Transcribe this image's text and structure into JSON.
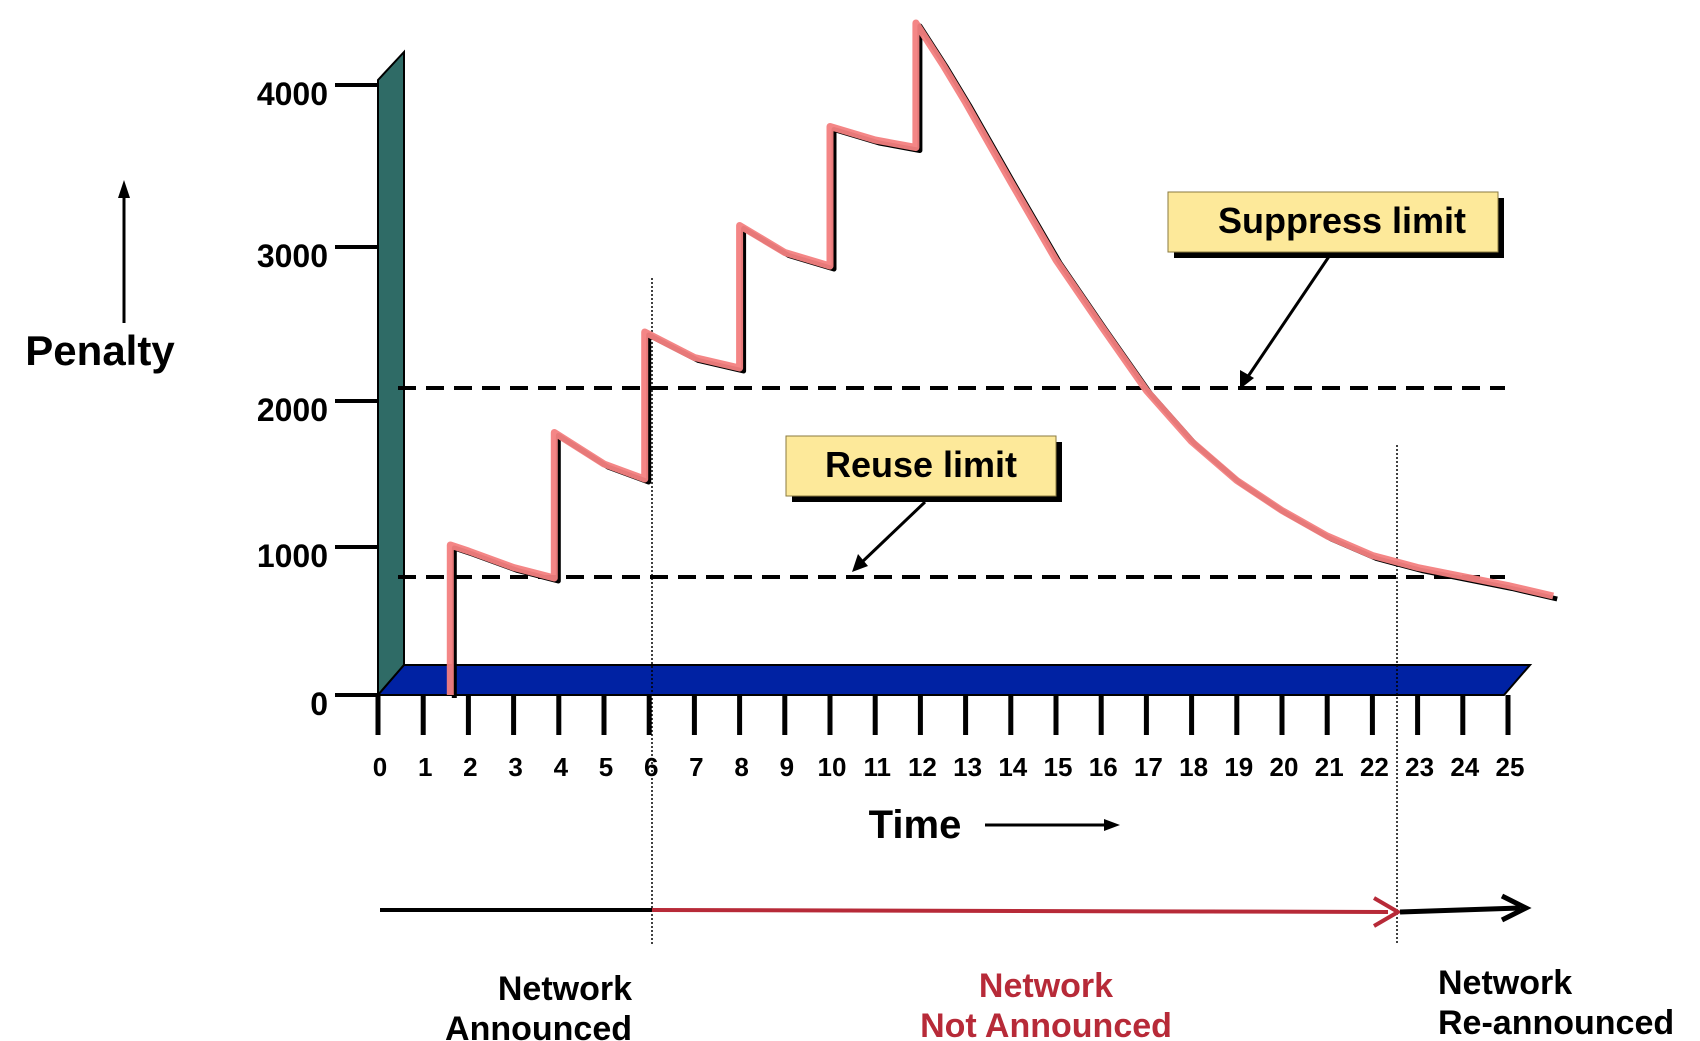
{
  "chart_data": {
    "type": "line",
    "ylabel": "Penalty",
    "xlabel": "Time",
    "y_ticks": [
      "0",
      "1000",
      "2000",
      "3000",
      "4000"
    ],
    "x_ticks": [
      "0",
      "1",
      "2",
      "3",
      "4",
      "5",
      "6",
      "7",
      "8",
      "9",
      "10",
      "11",
      "12",
      "13",
      "14",
      "15",
      "16",
      "17",
      "18",
      "19",
      "20",
      "21",
      "22",
      "23",
      "24",
      "25"
    ],
    "xlim": [
      0,
      26
    ],
    "ylim": [
      0,
      4500
    ],
    "penalty_curve": {
      "x": [
        1.6,
        1.6,
        2.0,
        3.0,
        3.9,
        3.9,
        5.0,
        5.9,
        5.9,
        7.0,
        8.0,
        8.0,
        9.0,
        10.0,
        10.0,
        11.0,
        11.9,
        11.9,
        12.5,
        13.0,
        14.0,
        15.0,
        16.0,
        17.0,
        18.0,
        19.0,
        20.0,
        21.0,
        22.0,
        23.0,
        24.0,
        25.0,
        26.0
      ],
      "y": [
        0,
        1000,
        960,
        850,
        780,
        1750,
        1540,
        1440,
        2420,
        2250,
        2180,
        3130,
        2950,
        2860,
        3790,
        3700,
        3650,
        4480,
        4200,
        3950,
        3420,
        2900,
        2460,
        2030,
        1690,
        1430,
        1230,
        1060,
        930,
        850,
        790,
        730,
        660
      ]
    },
    "thresholds": [
      {
        "name": "Suppress limit",
        "y": 2000
      },
      {
        "name": "Reuse limit",
        "y": 750
      }
    ],
    "phase_boundaries_x": [
      6,
      22.6
    ],
    "colors": {
      "curve": "#f37f7f",
      "curve_edge": "#000000",
      "floor": "#0022a3",
      "wall": "#2f6b66",
      "callout_fill": "#fde99a",
      "not_announced": "#b72a38"
    }
  },
  "callouts": {
    "suppress": "Suppress limit",
    "reuse": "Reuse limit"
  },
  "phases": {
    "announced": [
      "Network",
      "Announced"
    ],
    "not_announced": [
      "Network",
      "Not Announced"
    ],
    "reannounced": [
      "Network",
      "Re-announced"
    ]
  }
}
